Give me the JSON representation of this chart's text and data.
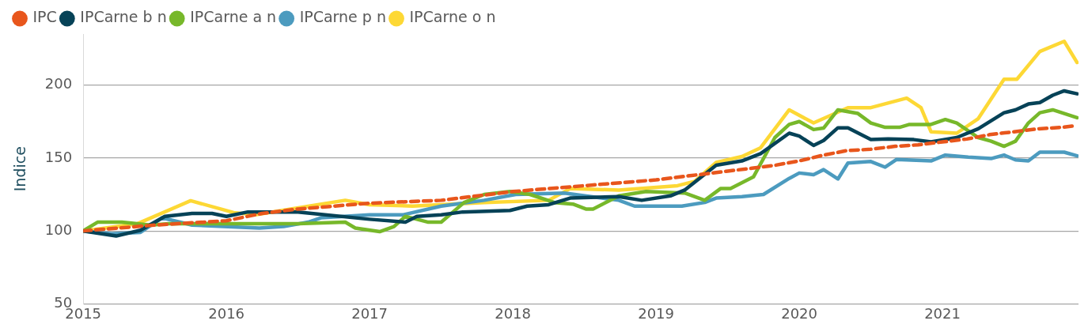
{
  "chart_data": {
    "type": "line",
    "ylabel": "Indice",
    "xlim": [
      2015,
      2021.95
    ],
    "xticks": [
      2015,
      2016,
      2017,
      2018,
      2019,
      2020,
      2021
    ],
    "ylim": [
      50,
      235
    ],
    "yticks": [
      50,
      100,
      150,
      200
    ],
    "grid": "y",
    "legend": "top left",
    "marker": "none",
    "series": [
      {
        "name": "IPC",
        "color": "#e8561c",
        "line_style": "dashed",
        "x": [
          2015,
          2015.5,
          2016,
          2016.25,
          2016.5,
          2017,
          2017.5,
          2018,
          2018.5,
          2019,
          2019.25,
          2019.5,
          2019.67,
          2019.83,
          2020,
          2020.17,
          2020.33,
          2020.5,
          2020.67,
          2020.83,
          2021,
          2021.17,
          2021.33,
          2021.5,
          2021.67,
          2021.83,
          2021.92
        ],
        "values": [
          100,
          104,
          107,
          112,
          115,
          119,
          121,
          127,
          131,
          135,
          138,
          141,
          143,
          145,
          148,
          152,
          155,
          156,
          158,
          159,
          161,
          163,
          166,
          168,
          170,
          171,
          172
        ]
      },
      {
        "name": "IPCarne b n",
        "color": "#064257",
        "line_style": "solid",
        "x": [
          2015,
          2015.23,
          2015.4,
          2015.57,
          2015.76,
          2015.9,
          2016,
          2016.15,
          2016.5,
          2017,
          2017.25,
          2017.33,
          2017.5,
          2017.65,
          2017.98,
          2018.1,
          2018.25,
          2018.4,
          2018.74,
          2018.9,
          2019.1,
          2019.2,
          2019.42,
          2019.6,
          2019.73,
          2019.93,
          2020,
          2020.1,
          2020.17,
          2020.27,
          2020.34,
          2020.5,
          2020.62,
          2020.8,
          2020.92,
          2021.1,
          2021.25,
          2021.43,
          2021.51,
          2021.6,
          2021.68,
          2021.77,
          2021.85,
          2021.94
        ],
        "values": [
          100,
          96.5,
          100.5,
          110,
          112,
          112,
          110,
          113,
          113,
          108,
          106,
          110,
          111,
          113,
          114,
          117,
          118,
          122.5,
          123.5,
          121,
          124,
          128,
          145,
          148,
          153,
          167,
          165,
          158.6,
          162,
          170.7,
          170.7,
          162.6,
          163,
          162.6,
          161,
          164,
          170,
          181,
          183,
          187,
          188,
          193,
          196,
          194
        ]
      },
      {
        "name": "IPCarne a n",
        "color": "#77b82a",
        "line_style": "solid",
        "x": [
          2015,
          2015.1,
          2015.27,
          2015.47,
          2015.6,
          2016,
          2016.5,
          2016.83,
          2016.9,
          2017.07,
          2017.17,
          2017.25,
          2017.41,
          2017.5,
          2017.66,
          2017.8,
          2017.98,
          2018.12,
          2018.29,
          2018.42,
          2018.51,
          2018.56,
          2018.74,
          2018.93,
          2019.2,
          2019.34,
          2019.45,
          2019.52,
          2019.68,
          2019.83,
          2019.93,
          2020,
          2020.1,
          2020.17,
          2020.27,
          2020.41,
          2020.5,
          2020.6,
          2020.7,
          2020.77,
          2020.92,
          2021.02,
          2021.1,
          2021.25,
          2021.34,
          2021.43,
          2021.51,
          2021.6,
          2021.68,
          2021.77,
          2021.94
        ],
        "values": [
          100,
          106,
          106,
          104,
          105,
          105,
          105,
          106,
          102,
          99.5,
          103,
          110,
          106,
          106,
          119.5,
          125,
          127,
          125,
          119.5,
          118.4,
          115,
          115,
          124,
          127,
          126,
          121,
          129,
          129,
          137,
          164,
          173,
          175,
          169.5,
          170.5,
          183,
          180.5,
          174,
          171,
          171,
          173,
          173,
          176.4,
          174,
          164,
          161.5,
          158,
          161.5,
          174,
          181,
          183,
          177.6
        ]
      },
      {
        "name": "IPCarne p n",
        "color": "#4c9bbf",
        "line_style": "solid",
        "x": [
          2015,
          2015.2,
          2015.4,
          2015.55,
          2015.76,
          2016.23,
          2016.4,
          2016.57,
          2016.66,
          2017,
          2017.23,
          2017.5,
          2017.8,
          2018.02,
          2018.36,
          2018.74,
          2018.85,
          2019.1,
          2019.18,
          2019.34,
          2019.42,
          2019.6,
          2019.75,
          2019.93,
          2020,
          2020.1,
          2020.17,
          2020.27,
          2020.34,
          2020.5,
          2020.6,
          2020.68,
          2020.92,
          2021.02,
          2021.18,
          2021.34,
          2021.43,
          2021.51,
          2021.6,
          2021.68,
          2021.85,
          2021.94
        ],
        "values": [
          100,
          98,
          99,
          109,
          104,
          102,
          103,
          106,
          109,
          111,
          111,
          117,
          121,
          125,
          126,
          121,
          117,
          117,
          117,
          119.5,
          122.5,
          123.5,
          125,
          136,
          139.7,
          138.6,
          142,
          135.6,
          146.5,
          147.6,
          143.7,
          149,
          148,
          152,
          150.6,
          149.6,
          152,
          148.7,
          148,
          154,
          154,
          151.5
        ]
      },
      {
        "name": "IPCarne o n",
        "color": "#fdd835",
        "line_style": "solid",
        "x": [
          2015,
          2015.38,
          2015.75,
          2016.05,
          2016.2,
          2016.83,
          2017,
          2017.3,
          2017.8,
          2018.25,
          2018.4,
          2018.74,
          2019.15,
          2019.27,
          2019.42,
          2019.6,
          2019.73,
          2019.93,
          2020.1,
          2020.34,
          2020.5,
          2020.75,
          2020.85,
          2020.92,
          2021.1,
          2021.25,
          2021.43,
          2021.52,
          2021.68,
          2021.85,
          2021.94
        ],
        "values": [
          100,
          105,
          120.7,
          112.6,
          111,
          121,
          118,
          117,
          119.5,
          121,
          129,
          128,
          131,
          134,
          147,
          151,
          157,
          183,
          174,
          184.5,
          184.5,
          191,
          184.5,
          168,
          167,
          177,
          204,
          204,
          223,
          230,
          215.5
        ]
      }
    ]
  }
}
